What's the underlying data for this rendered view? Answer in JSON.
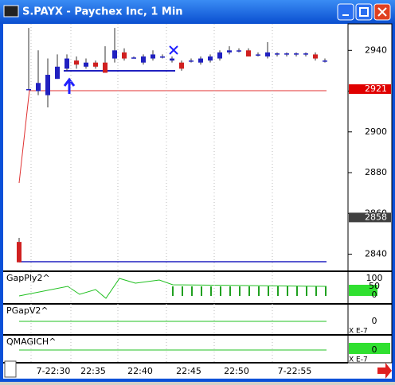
{
  "window": {
    "title": "S.PAYX - Paychex Inc, 1 Min"
  },
  "chart_data": {
    "type": "candlestick",
    "ylim": [
      2832,
      2953
    ],
    "yticks": [
      2840,
      2860,
      2880,
      2900,
      2920,
      2940
    ],
    "price_labels": [
      {
        "value": 2921,
        "label": "2921",
        "color": "#e00000"
      },
      {
        "value": 2858,
        "label": "2858",
        "color": "#404040"
      }
    ],
    "xticks": [
      "7-22:30",
      "22:35",
      "22:40",
      "22:45",
      "22:50",
      "7-22:55"
    ],
    "up_color": "#2020c0",
    "down_color": "#d02020",
    "open": [
      2846,
      2921,
      2920,
      2918,
      2926,
      2931,
      2935,
      2932,
      2934,
      2934,
      2936,
      2939,
      2936.5,
      2934,
      2936,
      2937,
      2935,
      2934,
      2935,
      2934,
      2935,
      2936,
      2939,
      2940,
      2940,
      2938,
      2937,
      2938,
      2938,
      2938,
      2938,
      2938,
      2935
    ],
    "high": [
      2848,
      2951,
      2940,
      2936,
      2938,
      2938,
      2937,
      2936,
      2935,
      2942,
      2951,
      2941,
      2937,
      2938,
      2940,
      2938,
      2937,
      2935,
      2936,
      2937,
      2938,
      2940,
      2942,
      2941,
      2941,
      2939,
      2944,
      2939,
      2939,
      2939,
      2939,
      2939,
      2936
    ],
    "low": [
      2836,
      2921,
      2918,
      2912,
      2926,
      2930,
      2931,
      2931,
      2931,
      2929,
      2934,
      2935,
      2936,
      2933,
      2935,
      2936,
      2934,
      2930,
      2934,
      2933,
      2934,
      2935,
      2938,
      2939,
      2937,
      2937,
      2936,
      2937,
      2937,
      2937,
      2937,
      2935,
      2934
    ],
    "close": [
      2836,
      2921,
      2924,
      2928,
      2932,
      2936,
      2933,
      2934,
      2932,
      2929,
      2940,
      2936,
      2936.5,
      2937,
      2938,
      2937,
      2936,
      2931,
      2935,
      2936,
      2937,
      2939,
      2940,
      2940,
      2937,
      2938,
      2939,
      2938.5,
      2938.5,
      2938.5,
      2938.5,
      2936,
      2935
    ]
  },
  "panels": [
    {
      "name": "GapPly2^",
      "ticks": [
        "100",
        "50",
        "0"
      ]
    },
    {
      "name": "PGapV2^",
      "ticks": [
        "0"
      ],
      "scale": "X E-7"
    },
    {
      "name": "QMAGICH^",
      "ticks": [
        "0"
      ],
      "scale": "X E-7"
    }
  ]
}
